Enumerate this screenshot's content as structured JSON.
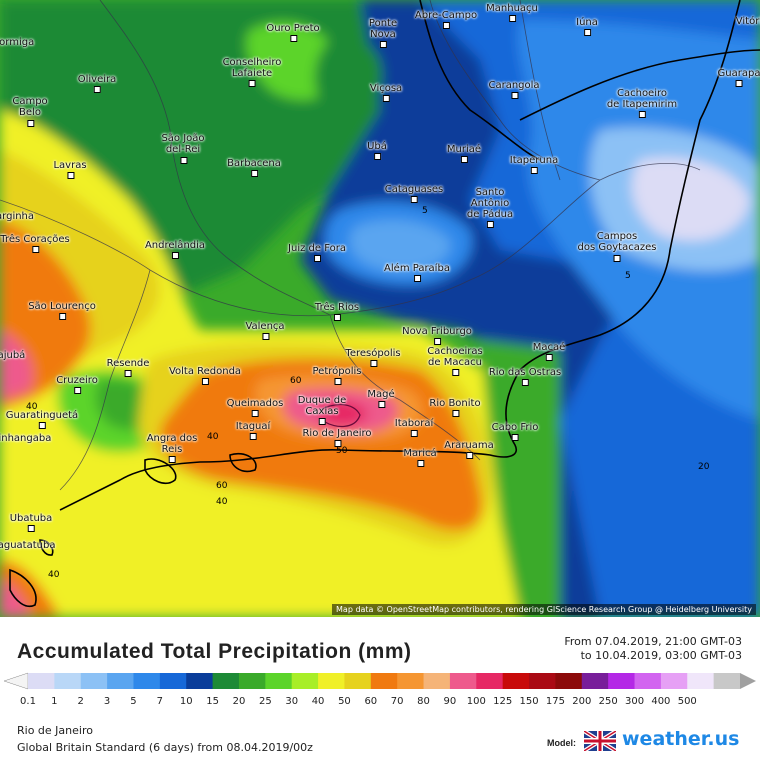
{
  "title": "Accumulated Total Precipitation (mm)",
  "period": {
    "from": "From 07.04.2019, 21:00 GMT-03",
    "to": "to 10.04.2019, 03:00 GMT-03"
  },
  "attribution": "Map data © OpenStreetMap contributors, rendering GIScience Research Group @ Heidelberg University",
  "location": "Rio de Janeiro",
  "model_text": "Global Britain Standard (6 days) from 08.04.2019/00z",
  "model_label": "Model:",
  "brand": "weather.us",
  "legend": {
    "ticks": [
      "0.1",
      "1",
      "2",
      "3",
      "5",
      "7",
      "10",
      "15",
      "20",
      "25",
      "30",
      "40",
      "50",
      "60",
      "70",
      "80",
      "90",
      "100",
      "125",
      "150",
      "175",
      "200",
      "250",
      "300",
      "400",
      "500"
    ],
    "colors": [
      "#dcdcf5",
      "#b9d7f7",
      "#8cc1f5",
      "#5aa5f0",
      "#2e88ea",
      "#1668d8",
      "#0a3d9a",
      "#1d8a36",
      "#3aaa2a",
      "#5cd42a",
      "#a8ee28",
      "#f0f028",
      "#e6d21e",
      "#f07a10",
      "#f59632",
      "#f5b478",
      "#ee5a8c",
      "#e62864",
      "#c80a0a",
      "#aa0a14",
      "#8c0a0a",
      "#781e9a",
      "#b428e6",
      "#d264f0",
      "#e6a0f5",
      "#f0e6fa",
      "#c8c8c8"
    ]
  },
  "cities": [
    {
      "name": "Abre-Campo"
    },
    {
      "name": "Manhuaçu"
    },
    {
      "name": "Iúna"
    },
    {
      "name": "Ouro Preto"
    },
    {
      "name": "Ponte\nNova"
    },
    {
      "name": "Conselheiro\nLafaiete"
    },
    {
      "name": "Oliveira"
    },
    {
      "name": "Campo\nBelo"
    },
    {
      "name": "Viçosa"
    },
    {
      "name": "Carangola"
    },
    {
      "name": "Cachoeiro\nde Itapemirim"
    },
    {
      "name": "Guarapa"
    },
    {
      "name": "São João\ndel-Rei"
    },
    {
      "name": "Ubá"
    },
    {
      "name": "Muriaé"
    },
    {
      "name": "Itaperuna"
    },
    {
      "name": "Lavras"
    },
    {
      "name": "Barbacena"
    },
    {
      "name": "Cataguases"
    },
    {
      "name": "Santo\nAntônio\nde Pádua"
    },
    {
      "name": "Juiz de Fora"
    },
    {
      "name": "Campos\ndos Goytacazes"
    },
    {
      "name": "Três Corações"
    },
    {
      "name": "Andrelândia"
    },
    {
      "name": "Além Paraíba"
    },
    {
      "name": "São Lourenço"
    },
    {
      "name": "Três Rios"
    },
    {
      "name": "Valença"
    },
    {
      "name": "Nova Friburgo"
    },
    {
      "name": "Macaé"
    },
    {
      "name": "Teresópolis"
    },
    {
      "name": "Cachoeiras\nde Macacu"
    },
    {
      "name": "Resende"
    },
    {
      "name": "Volta Redonda"
    },
    {
      "name": "Petrópolis"
    },
    {
      "name": "Rio das Ostras"
    },
    {
      "name": "Cruzeiro"
    },
    {
      "name": "Magé"
    },
    {
      "name": "Duque de\nCaxias"
    },
    {
      "name": "Queimados"
    },
    {
      "name": "Rio Bonito"
    },
    {
      "name": "Guaratinguetá"
    },
    {
      "name": "Itaguaí"
    },
    {
      "name": "Rio de Janeiro"
    },
    {
      "name": "Itaboraí"
    },
    {
      "name": "Cabo Frio"
    },
    {
      "name": "Angra dos\nReis"
    },
    {
      "name": "Araruama"
    },
    {
      "name": "Maricá"
    },
    {
      "name": "Ubatuba"
    },
    {
      "name": "Caraguatatuba"
    },
    {
      "name": "Pinhangaba"
    },
    {
      "name": "Itajubá"
    },
    {
      "name": "Varginha"
    },
    {
      "name": "Formiga"
    },
    {
      "name": "Vitória"
    }
  ],
  "contour_labels": [
    "5",
    "5",
    "20",
    "40",
    "60",
    "40",
    "60",
    "50",
    "40",
    "40"
  ]
}
